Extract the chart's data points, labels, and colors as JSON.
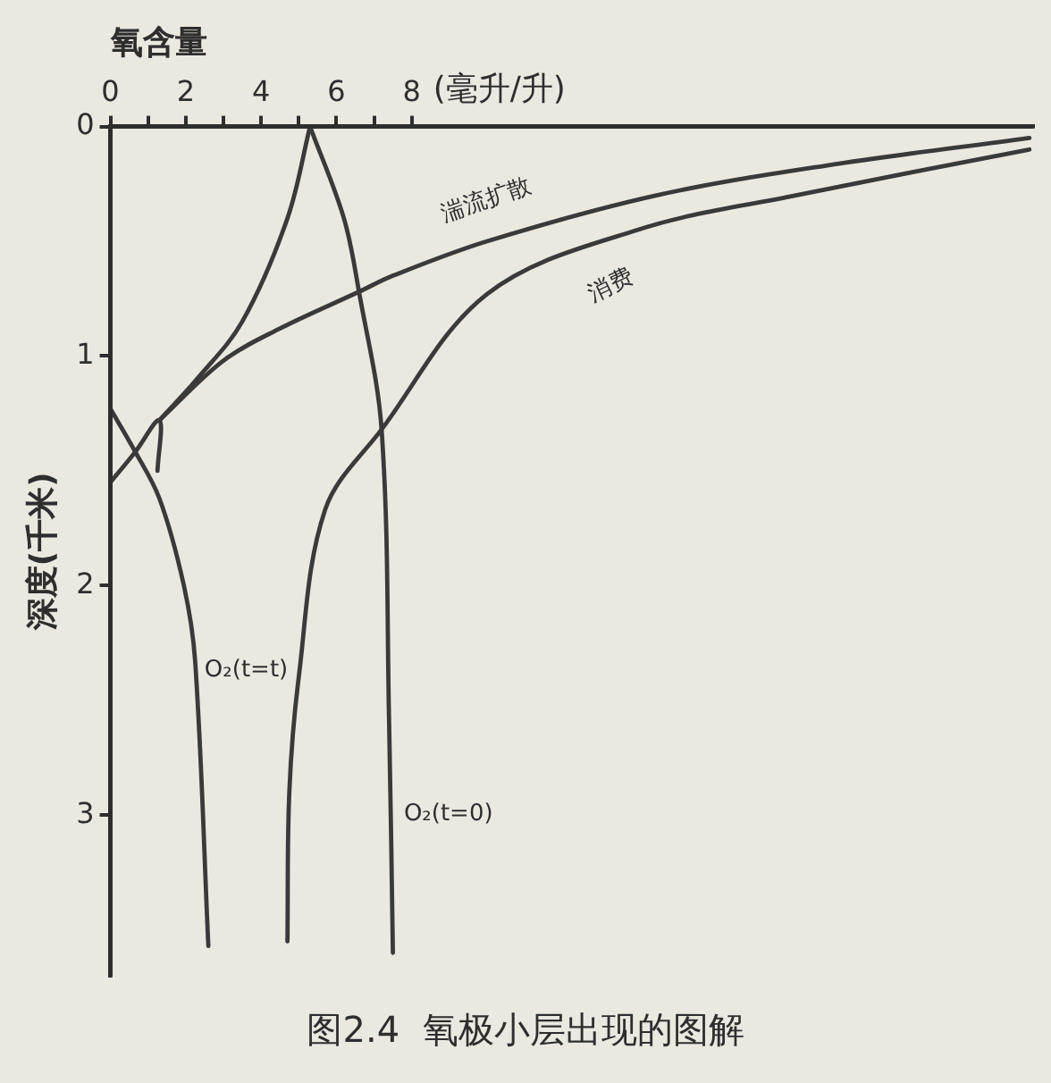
{
  "chart_data": {
    "type": "line",
    "title": "图2.4  氧极小层出现的图解",
    "xlabel": "氧含量",
    "ylabel": "深度(千米)",
    "annotations": [
      "(毫升/升)",
      "湍流扩散",
      "消费",
      "O₂(t=t)",
      "O₂(t=0)"
    ],
    "xlim": [
      0,
      24.5
    ],
    "ylim": [
      3.7,
      0
    ],
    "xticks": [
      0,
      {
        "value": 1,
        "label": null
      },
      2,
      {
        "value": 3,
        "label": null
      },
      4,
      {
        "value": 5,
        "label": null
      },
      6,
      {
        "value": 7,
        "label": null
      },
      8
    ],
    "yticks": [
      0,
      1,
      2,
      3
    ],
    "grid": false,
    "legend": false,
    "marker": "none",
    "line_style": "solid",
    "series": [
      {
        "type": "line",
        "color": "#3a3a3a",
        "x": [
          1.3,
          3,
          4.5,
          6.6,
          7.5,
          10,
          14.5,
          19,
          24.4
        ],
        "values": [
          1.28,
          1.02,
          0.88,
          0.72,
          0.65,
          0.5,
          0.3,
          0.17,
          0.05
        ]
      },
      {
        "type": "line",
        "color": "#3a3a3a",
        "x": [
          4.7,
          4.75,
          5.0,
          5.7,
          7.2,
          10,
          14,
          18.2,
          24.4
        ],
        "values": [
          3.55,
          2.9,
          2.4,
          1.67,
          1.32,
          0.73,
          0.45,
          0.3,
          0.1
        ]
      },
      {
        "type": "line",
        "color": "#3a3a3a",
        "x": [
          5.3,
          6.2,
          6.6,
          7.2,
          7.4,
          7.5
        ],
        "values": [
          0,
          0.4,
          0.72,
          1.32,
          2.6,
          3.6
        ]
      },
      {
        "type": "line",
        "color": "#3a3a3a",
        "x": [
          5.3,
          4.7,
          3.5,
          2.3,
          1.3
        ],
        "values": [
          0,
          0.4,
          0.85,
          1.1,
          1.28
        ]
      },
      {
        "type": "line",
        "color": "#3a3a3a",
        "x": [
          0,
          0.6,
          1.3,
          1.95,
          2.25,
          2.6
        ],
        "values": [
          1.23,
          1.4,
          1.62,
          2.0,
          2.33,
          3.57
        ]
      },
      {
        "type": "line",
        "color": "#3a3a3a",
        "x": [
          0,
          0.65,
          1.3,
          1.25
        ],
        "values": [
          1.55,
          1.42,
          1.28,
          1.5
        ]
      }
    ]
  }
}
